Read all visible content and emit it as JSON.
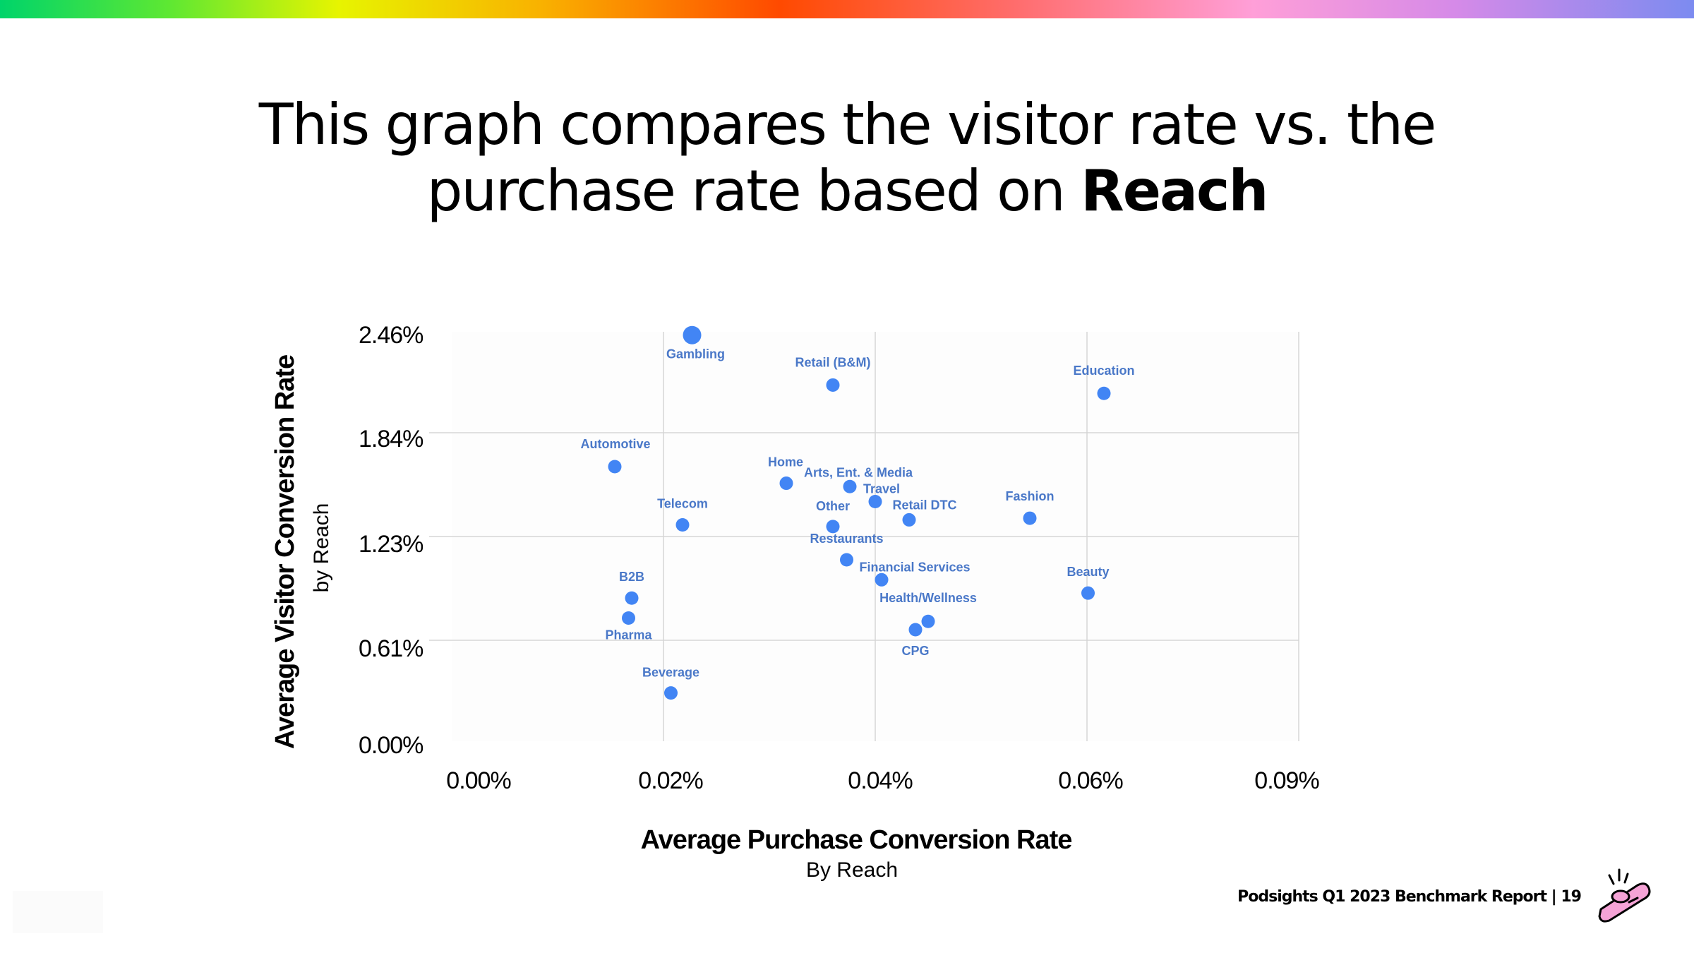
{
  "title": {
    "line1": "This graph compares the visitor rate vs. the",
    "line2_prefix": "purchase rate based on ",
    "line2_bold": "Reach"
  },
  "footer": {
    "text": "Podsights Q1 2023 Benchmark Report | 19"
  },
  "colors": {
    "point": "#4285f4",
    "label": "#4a78c8",
    "grid": "#d6d6d6"
  },
  "icons": [
    "mascot-icon"
  ],
  "chart_data": {
    "type": "scatter",
    "xlabel": "Average Purchase Conversion Rate",
    "xlabel_sub": "By Reach",
    "ylabel": "Average Visitor Conversion Rate",
    "ylabel_sub": "by Reach",
    "x_ticks": [
      "0.00%",
      "0.02%",
      "0.04%",
      "0.06%",
      "0.09%"
    ],
    "y_ticks": [
      "0.00%",
      "0.61%",
      "1.23%",
      "1.84%",
      "2.46%"
    ],
    "xlim": [
      0,
      0.08
    ],
    "ylim": [
      0,
      2.46
    ],
    "grid": true,
    "points": [
      {
        "label": "Gambling",
        "x": 0.0227,
        "y": 2.44
      },
      {
        "label": "Retail (B&M)",
        "x": 0.036,
        "y": 2.14
      },
      {
        "label": "Education",
        "x": 0.0616,
        "y": 2.09
      },
      {
        "label": "Automotive",
        "x": 0.0154,
        "y": 1.65
      },
      {
        "label": "Home",
        "x": 0.0316,
        "y": 1.55
      },
      {
        "label": "Arts, Ent. & Media",
        "x": 0.0376,
        "y": 1.53
      },
      {
        "label": "Travel",
        "x": 0.04,
        "y": 1.44
      },
      {
        "label": "Retail DTC",
        "x": 0.0432,
        "y": 1.33
      },
      {
        "label": "Other",
        "x": 0.036,
        "y": 1.29
      },
      {
        "label": "Fashion",
        "x": 0.0546,
        "y": 1.34
      },
      {
        "label": "Telecom",
        "x": 0.0218,
        "y": 1.3
      },
      {
        "label": "Restaurants",
        "x": 0.0373,
        "y": 1.09
      },
      {
        "label": "Financial Services",
        "x": 0.0406,
        "y": 0.97
      },
      {
        "label": "Beauty",
        "x": 0.0601,
        "y": 0.89
      },
      {
        "label": "B2B",
        "x": 0.017,
        "y": 0.86
      },
      {
        "label": "Pharma",
        "x": 0.0167,
        "y": 0.74
      },
      {
        "label": "Health/Wellness",
        "x": 0.045,
        "y": 0.72
      },
      {
        "label": "CPG",
        "x": 0.0438,
        "y": 0.67
      },
      {
        "label": "Beverage",
        "x": 0.0207,
        "y": 0.29
      }
    ]
  }
}
